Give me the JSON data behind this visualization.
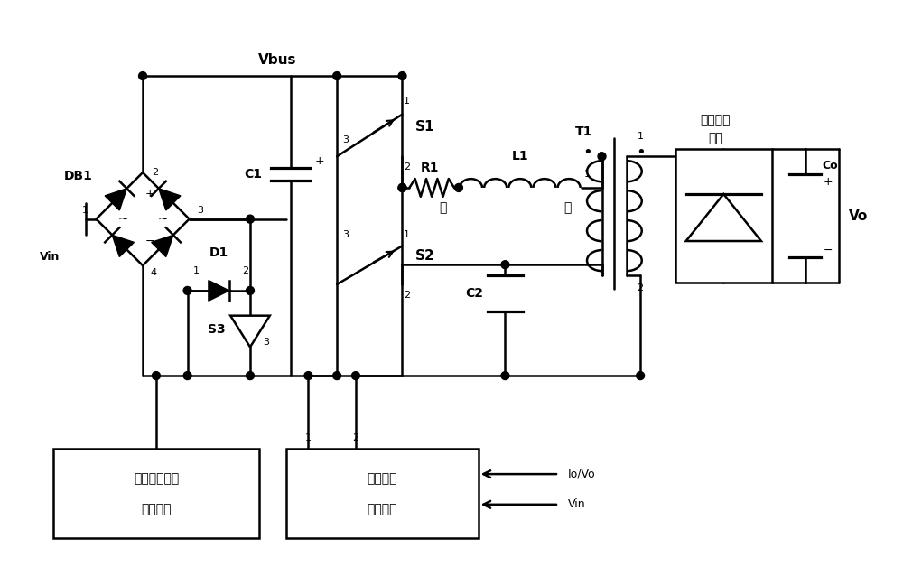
{
  "bg_color": "#ffffff",
  "line_color": "#000000",
  "line_width": 1.8,
  "fig_width": 10.0,
  "fig_height": 6.27,
  "dpi": 100,
  "vbus_label": "Vbus",
  "db1_label": "DB1",
  "vin_label": "Vin",
  "c1_label": "C1",
  "d1_label": "D1",
  "s1_label": "S1",
  "s2_label": "S2",
  "s3_label": "S3",
  "r1_label": "R1",
  "l1_label": "L1",
  "t1_label": "T1",
  "c2_label": "C2",
  "co_label": "Co",
  "vo_label": "Vo",
  "left_label": "左",
  "right_label": "右",
  "box1_line1": "功率因素校正",
  "box1_line2": "控制电路",
  "box2_line1": "谐振控制",
  "box2_line2": "驱动电路",
  "out_line1": "输出整流",
  "out_line2": "电路",
  "io_vo_label": "Io/Vo",
  "vin_arrow_label": "Vin"
}
